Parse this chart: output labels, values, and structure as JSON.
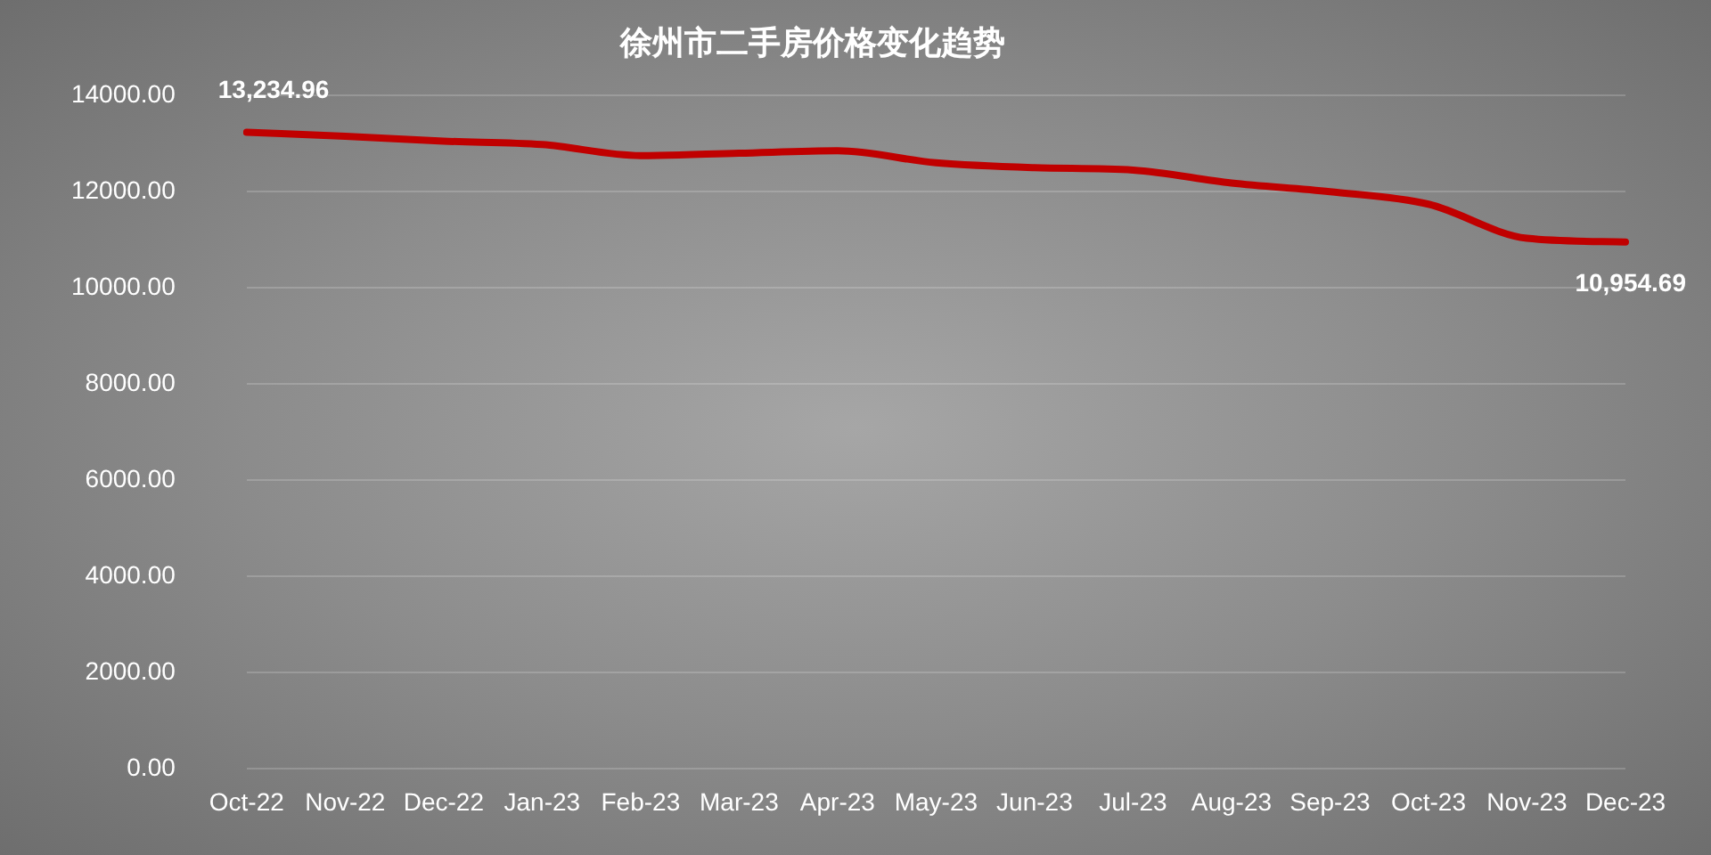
{
  "chart_data": {
    "type": "line",
    "title": "徐州市二手房价格变化趋势",
    "categories": [
      "Oct-22",
      "Nov-22",
      "Dec-22",
      "Jan-23",
      "Feb-23",
      "Mar-23",
      "Apr-23",
      "May-23",
      "Jun-23",
      "Jul-23",
      "Aug-23",
      "Sep-23",
      "Oct-23",
      "Nov-23",
      "Dec-23"
    ],
    "series": [
      {
        "color": "#c00000",
        "values": [
          13234.96,
          13150,
          13050,
          12980,
          12750,
          12800,
          12850,
          12600,
          12500,
          12450,
          12180,
          12000,
          11740,
          11030,
          10954.69
        ],
        "value_labels": [
          "13,234.96",
          null,
          null,
          null,
          null,
          null,
          null,
          null,
          null,
          null,
          null,
          null,
          null,
          null,
          "10,954.69"
        ]
      }
    ],
    "ylim": [
      0,
      14000
    ],
    "yticks": [
      {
        "value": 0,
        "label": "0.00"
      },
      {
        "value": 2000,
        "label": "2000.00"
      },
      {
        "value": 4000,
        "label": "4000.00"
      },
      {
        "value": 6000,
        "label": "6000.00"
      },
      {
        "value": 8000,
        "label": "8000.00"
      },
      {
        "value": 10000,
        "label": "10000.00"
      },
      {
        "value": 12000,
        "label": "12000.00"
      },
      {
        "value": 14000,
        "label": "14000.00"
      }
    ],
    "grid": "y",
    "legend": false,
    "marker": "none",
    "line_style": "solid"
  }
}
